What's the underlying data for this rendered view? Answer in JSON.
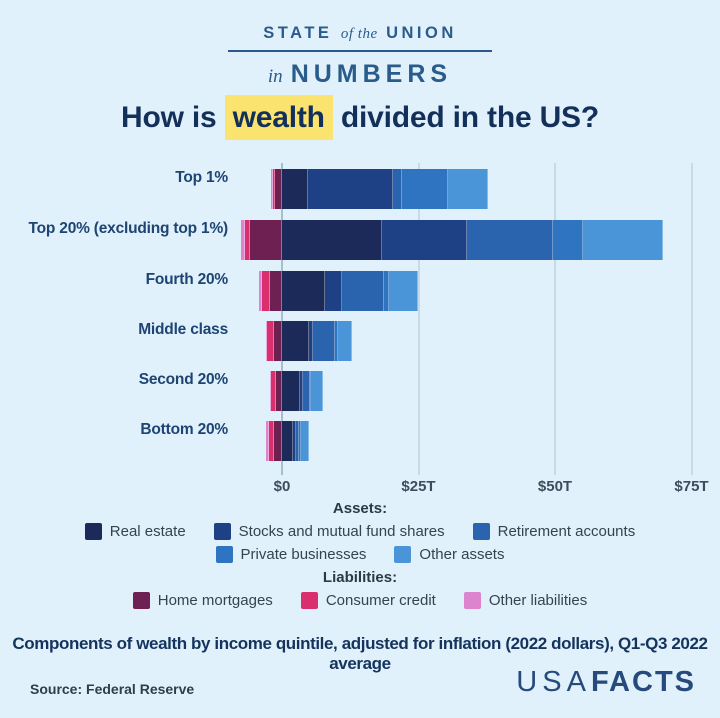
{
  "header": {
    "line1_a": "STATE",
    "line1_b": "of the",
    "line1_c": "UNION",
    "line2_a": "in",
    "line2_b": "NUMBERS"
  },
  "title": {
    "pre": "How is",
    "highlight": "wealth",
    "post": "divided in the US?",
    "highlight_color": "#fae36e",
    "text_color": "#13305a"
  },
  "chart_data": {
    "type": "bar",
    "orientation": "horizontal",
    "stacked": true,
    "units": "trillions of 2022 dollars",
    "title": "How is wealth divided in the US?",
    "categories": [
      "Top 1%",
      "Top 20% (excluding top 1%)",
      "Fourth 20%",
      "Middle class",
      "Second 20%",
      "Bottom 20%"
    ],
    "series": [
      {
        "name": "Real estate",
        "group": "assets",
        "color": "#1b2a58",
        "values": [
          4.7,
          18.3,
          7.9,
          5.0,
          3.3,
          2.1
        ]
      },
      {
        "name": "Stocks and mutual fund shares",
        "group": "assets",
        "color": "#1e4186",
        "values": [
          15.7,
          15.5,
          3.1,
          0.7,
          0.5,
          0.4
        ]
      },
      {
        "name": "Retirement accounts",
        "group": "assets",
        "color": "#2a63ae",
        "values": [
          1.5,
          15.8,
          7.6,
          4.0,
          1.3,
          0.7
        ]
      },
      {
        "name": "Private businesses",
        "group": "assets",
        "color": "#2f74c0",
        "values": [
          8.5,
          5.5,
          1.0,
          0.5,
          0.3,
          0.2
        ]
      },
      {
        "name": "Other assets",
        "group": "assets",
        "color": "#4995d8",
        "values": [
          7.3,
          14.6,
          5.3,
          2.6,
          2.1,
          1.6
        ]
      },
      {
        "name": "Home mortgages",
        "group": "liabilities",
        "color": "#6f2052",
        "values": [
          -1.2,
          -5.8,
          -2.2,
          -1.5,
          -1.1,
          -1.5
        ]
      },
      {
        "name": "Consumer credit",
        "group": "liabilities",
        "color": "#da2f6f",
        "values": [
          -0.5,
          -0.9,
          -1.5,
          -1.2,
          -0.9,
          -0.9
        ]
      },
      {
        "name": "Other liabilities",
        "group": "liabilities",
        "color": "#dc85ce",
        "values": [
          -0.3,
          -0.9,
          -0.6,
          -0.3,
          -0.2,
          -0.5
        ]
      }
    ],
    "x_ticks": [
      {
        "label": "$0",
        "value": 0
      },
      {
        "label": "$25T",
        "value": 25
      },
      {
        "label": "$50T",
        "value": 50
      },
      {
        "label": "$75T",
        "value": 75
      }
    ],
    "xlim": [
      -9,
      78
    ],
    "grid": true,
    "legend_position": "bottom",
    "legend": [
      {
        "heading": "Assets:",
        "rows": [
          [
            "Real estate",
            "Stocks and mutual fund shares",
            "Retirement accounts"
          ],
          [
            "Private businesses",
            "Other assets"
          ]
        ]
      },
      {
        "heading": "Liabilities:",
        "rows": [
          [
            "Home mortgages",
            "Consumer credit",
            "Other liabilities"
          ]
        ]
      }
    ]
  },
  "footer": {
    "note": "Components of wealth by income quintile, adjusted for inflation (2022 dollars), Q1-Q3 2022 average",
    "source": "Source: Federal Reserve",
    "logo_light": "USA",
    "logo_bold": "FACTS"
  }
}
